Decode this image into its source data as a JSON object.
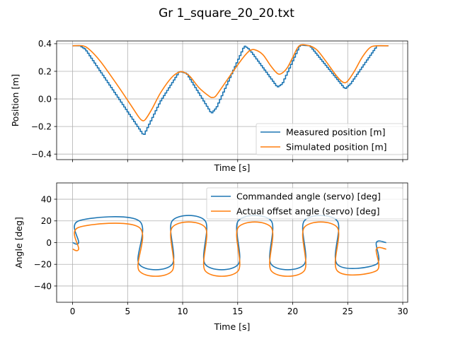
{
  "title": "Gr 1_square_20_20.txt",
  "chart_data": [
    {
      "type": "line",
      "xlabel": "Time [s]",
      "ylabel": "Position [m]",
      "xlim": [
        -1.45,
        30.45
      ],
      "ylim": [
        -0.44,
        0.42
      ],
      "xticks": [
        0,
        5,
        10,
        15,
        20,
        25,
        30
      ],
      "xtick_labels_visible": false,
      "yticks": [
        -0.4,
        -0.2,
        0.0,
        0.2,
        0.4
      ],
      "ytick_labels": [
        "−0.4",
        "−0.2",
        "0.0",
        "0.2",
        "0.4"
      ],
      "grid": true,
      "legend_loc": "lower right",
      "series": [
        {
          "name": "Measured position [m]",
          "color": "#1f77b4",
          "step": true,
          "step_dt": 0.15,
          "x": [
            0,
            0.6,
            1.1,
            6.4,
            7.9,
            9.65,
            10.3,
            12.55,
            13.0,
            15.55,
            16.0,
            18.55,
            19.0,
            20.6,
            21.5,
            24.7,
            25.2,
            27.6,
            28.7
          ],
          "y": [
            0.385,
            0.385,
            0.36,
            -0.265,
            -0.02,
            0.2,
            0.185,
            -0.105,
            -0.065,
            0.385,
            0.36,
            0.085,
            0.11,
            0.39,
            0.385,
            0.072,
            0.11,
            0.385,
            0.385
          ]
        },
        {
          "name": "Simulated position [m]",
          "color": "#ff7f0e",
          "step": false,
          "x": [
            0,
            0.9,
            1.5,
            2.5,
            3.5,
            4.5,
            5.5,
            6.0,
            6.3,
            6.6,
            7.2,
            8.0,
            9.0,
            9.7,
            10.2,
            10.7,
            11.5,
            12.4,
            12.7,
            13.0,
            13.5,
            14.5,
            15.5,
            16.1,
            16.6,
            17.3,
            18.0,
            18.6,
            19.0,
            19.5,
            20.0,
            20.6,
            21.5,
            22.2,
            23.0,
            24.0,
            24.6,
            25.0,
            25.6,
            26.3,
            27.0,
            27.6,
            28.7
          ],
          "y": [
            0.385,
            0.385,
            0.36,
            0.275,
            0.165,
            0.05,
            -0.07,
            -0.13,
            -0.155,
            -0.15,
            -0.075,
            0.045,
            0.155,
            0.195,
            0.19,
            0.16,
            0.08,
            0.02,
            0.01,
            0.02,
            0.075,
            0.19,
            0.3,
            0.35,
            0.355,
            0.32,
            0.24,
            0.185,
            0.185,
            0.225,
            0.3,
            0.385,
            0.385,
            0.355,
            0.275,
            0.165,
            0.12,
            0.13,
            0.2,
            0.3,
            0.37,
            0.385,
            0.385
          ]
        }
      ]
    },
    {
      "type": "line",
      "xlabel": "Time [s]",
      "ylabel": "Angle [deg]",
      "xlim": [
        -1.45,
        30.45
      ],
      "ylim": [
        -55,
        55
      ],
      "xticks": [
        0,
        5,
        10,
        15,
        20,
        25,
        30
      ],
      "xtick_labels": [
        "0",
        "5",
        "10",
        "15",
        "20",
        "25",
        "30"
      ],
      "yticks": [
        -40,
        -20,
        0,
        20,
        40
      ],
      "ytick_labels": [
        "−40",
        "−20",
        "0",
        "20",
        "40"
      ],
      "grid": true,
      "legend_loc": "upper right",
      "series": [
        {
          "name": "Commanded angle (servo) [deg]",
          "color": "#1f77b4",
          "x": [
            0,
            0.55,
            0.55,
            6.05,
            6.05,
            9.05,
            9.05,
            12.05,
            12.05,
            15.05,
            15.05,
            18.05,
            18.05,
            21.05,
            21.05,
            24.05,
            24.05,
            27.6,
            27.6,
            28.5
          ],
          "y": [
            0,
            0,
            20,
            20,
            -20,
            -20,
            20,
            20,
            -20,
            -20,
            20,
            20,
            -20,
            -20,
            20,
            20,
            -20,
            -20,
            0,
            0
          ]
        },
        {
          "name": "Actual offset angle (servo) [deg]",
          "color": "#ff7f0e",
          "x": [
            0,
            0.55,
            0.55,
            6.05,
            6.05,
            9.05,
            9.05,
            12.05,
            12.05,
            15.05,
            15.05,
            18.05,
            18.05,
            21.05,
            21.05,
            24.05,
            24.05,
            27.6,
            27.6,
            28.5
          ],
          "y": [
            -6,
            -6,
            14,
            14,
            -26,
            -26,
            14,
            14,
            -26,
            -26,
            14,
            14,
            -26,
            -26,
            14,
            14,
            -26,
            -26,
            -6,
            -6
          ]
        }
      ]
    }
  ]
}
